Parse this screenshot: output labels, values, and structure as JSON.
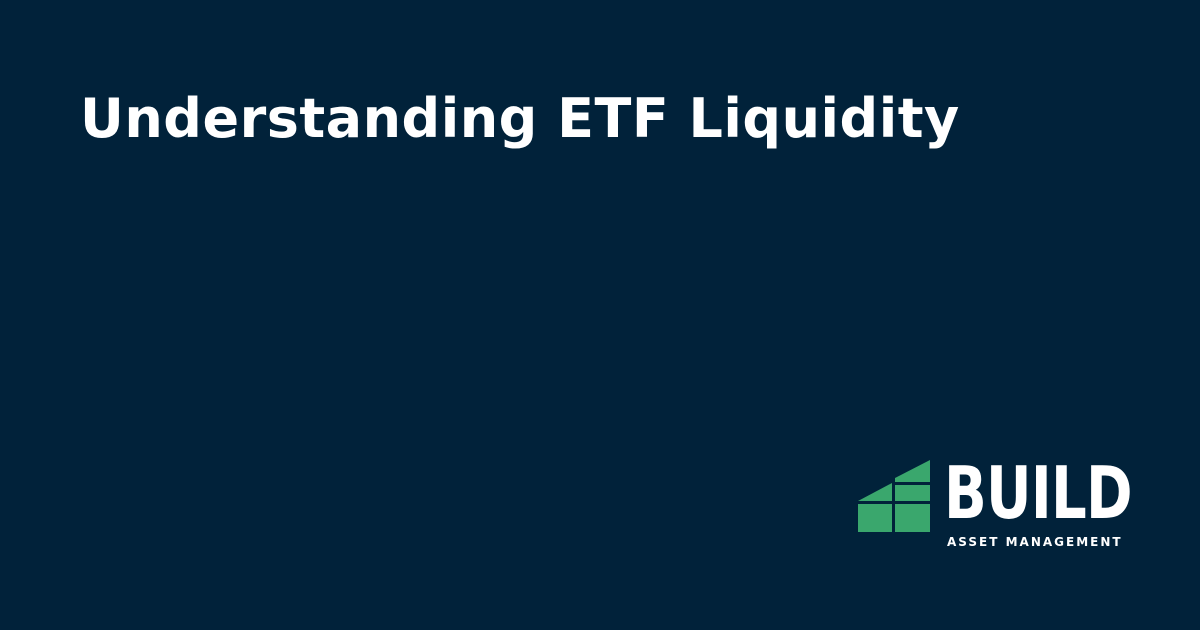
{
  "page": {
    "title": "Understanding ETF Liquidity",
    "background_color": "#01223a",
    "title_color": "#ffffff"
  },
  "logo": {
    "wordmark": "BUILD",
    "tagline": "ASSET MANAGEMENT",
    "mark_icon": "stepped-building-blocks-icon",
    "mark_color": "#3aa76d",
    "text_color": "#ffffff"
  }
}
